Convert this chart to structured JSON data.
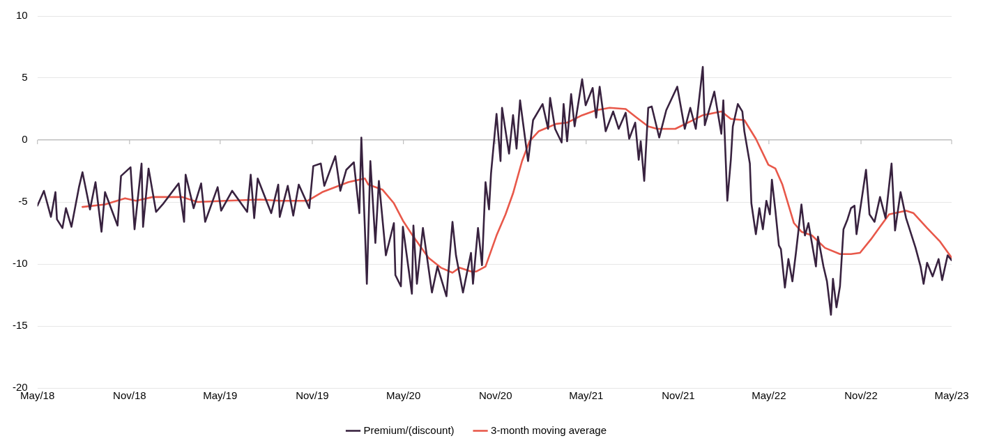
{
  "chart_data": {
    "type": "line",
    "xlim": [
      "2018-05-01",
      "2023-05-01"
    ],
    "xticks": [
      {
        "value": "2018-05",
        "label": "May/18"
      },
      {
        "value": "2018-11",
        "label": "Nov/18"
      },
      {
        "value": "2019-05",
        "label": "May/19"
      },
      {
        "value": "2019-11",
        "label": "Nov/19"
      },
      {
        "value": "2020-05",
        "label": "May/20"
      },
      {
        "value": "2020-11",
        "label": "Nov/20"
      },
      {
        "value": "2021-05",
        "label": "May/21"
      },
      {
        "value": "2021-11",
        "label": "Nov/21"
      },
      {
        "value": "2022-05",
        "label": "May/22"
      },
      {
        "value": "2022-11",
        "label": "Nov/22"
      },
      {
        "value": "2023-05",
        "label": "May/23"
      }
    ],
    "ylim": [
      -20,
      10
    ],
    "yticks": [
      -20,
      -15,
      -10,
      -5,
      0,
      5,
      10
    ],
    "grid": "y",
    "legend": "bottom",
    "marker": "none",
    "line_style": "solid",
    "series": [
      {
        "name": "Premium/(discount)",
        "color": "#38223f",
        "x": [
          "2018-05-01",
          "2018-05-14",
          "2018-05-28",
          "2018-06-06",
          "2018-06-09",
          "2018-06-20",
          "2018-06-27",
          "2018-07-08",
          "2018-07-23",
          "2018-07-30",
          "2018-08-14",
          "2018-08-25",
          "2018-09-06",
          "2018-09-13",
          "2018-10-08",
          "2018-10-15",
          "2018-11-03",
          "2018-11-11",
          "2018-11-25",
          "2018-11-28",
          "2018-12-09",
          "2018-12-24",
          "2019-01-08",
          "2019-02-07",
          "2019-02-18",
          "2019-02-21",
          "2019-03-09",
          "2019-03-24",
          "2019-04-01",
          "2019-04-26",
          "2019-05-03",
          "2019-05-25",
          "2019-06-24",
          "2019-07-01",
          "2019-07-08",
          "2019-07-15",
          "2019-08-11",
          "2019-08-25",
          "2019-08-28",
          "2019-09-13",
          "2019-09-24",
          "2019-10-05",
          "2019-10-26",
          "2019-11-03",
          "2019-11-18",
          "2019-11-25",
          "2019-12-17",
          "2019-12-27",
          "2020-01-08",
          "2020-01-23",
          "2020-02-03",
          "2020-02-07",
          "2020-02-14",
          "2020-02-18",
          "2020-02-25",
          "2020-03-06",
          "2020-03-13",
          "2020-03-27",
          "2020-04-12",
          "2020-04-15",
          "2020-04-26",
          "2020-04-30",
          "2020-05-18",
          "2020-05-21",
          "2020-05-28",
          "2020-06-09",
          "2020-06-27",
          "2020-07-08",
          "2020-07-26",
          "2020-08-07",
          "2020-08-14",
          "2020-08-28",
          "2020-09-13",
          "2020-09-17",
          "2020-09-27",
          "2020-10-05",
          "2020-10-12",
          "2020-10-19",
          "2020-10-23",
          "2020-11-03",
          "2020-11-11",
          "2020-11-14",
          "2020-11-28",
          "2020-12-06",
          "2020-12-13",
          "2020-12-20",
          "2021-01-05",
          "2021-01-15",
          "2021-02-03",
          "2021-02-14",
          "2021-02-18",
          "2021-02-28",
          "2021-03-13",
          "2021-03-17",
          "2021-03-24",
          "2021-04-01",
          "2021-04-08",
          "2021-04-23",
          "2021-04-30",
          "2021-05-14",
          "2021-05-21",
          "2021-05-28",
          "2021-06-09",
          "2021-06-24",
          "2021-07-05",
          "2021-07-19",
          "2021-07-26",
          "2021-08-07",
          "2021-08-14",
          "2021-08-18",
          "2021-08-25",
          "2021-09-02",
          "2021-09-09",
          "2021-09-24",
          "2021-10-08",
          "2021-10-30",
          "2021-11-14",
          "2021-11-25",
          "2021-12-06",
          "2021-12-20",
          "2021-12-24",
          "2022-01-12",
          "2022-01-26",
          "2022-01-30",
          "2022-02-07",
          "2022-02-14",
          "2022-02-18",
          "2022-02-28",
          "2022-03-09",
          "2022-03-13",
          "2022-03-24",
          "2022-03-27",
          "2022-04-05",
          "2022-04-12",
          "2022-04-19",
          "2022-04-26",
          "2022-05-03",
          "2022-05-07",
          "2022-05-14",
          "2022-05-21",
          "2022-05-25",
          "2022-06-02",
          "2022-06-09",
          "2022-06-17",
          "2022-06-24",
          "2022-07-05",
          "2022-07-12",
          "2022-07-19",
          "2022-08-03",
          "2022-08-07",
          "2022-08-18",
          "2022-08-25",
          "2022-09-02",
          "2022-09-06",
          "2022-09-13",
          "2022-09-20",
          "2022-09-27",
          "2022-10-05",
          "2022-10-12",
          "2022-10-19",
          "2022-10-23",
          "2022-11-03",
          "2022-11-11",
          "2022-11-18",
          "2022-11-28",
          "2022-12-09",
          "2022-12-20",
          "2023-01-01",
          "2023-01-08",
          "2023-01-19",
          "2023-01-30",
          "2023-02-18",
          "2023-02-28",
          "2023-03-06",
          "2023-03-13",
          "2023-03-24",
          "2023-04-05",
          "2023-04-12",
          "2023-04-23",
          "2023-05-01"
        ],
        "values": [
          -5.3,
          -4.1,
          -6.2,
          -4.2,
          -6.4,
          -7.1,
          -5.5,
          -7.0,
          -3.8,
          -2.6,
          -5.6,
          -3.4,
          -7.4,
          -4.2,
          -6.9,
          -2.9,
          -2.2,
          -7.2,
          -1.9,
          -7.0,
          -2.3,
          -5.8,
          -5.1,
          -3.5,
          -6.6,
          -2.8,
          -5.5,
          -3.5,
          -6.6,
          -3.8,
          -5.7,
          -4.1,
          -5.8,
          -2.8,
          -6.3,
          -3.1,
          -5.9,
          -3.6,
          -6.2,
          -3.7,
          -6.1,
          -3.6,
          -5.5,
          -2.1,
          -1.9,
          -3.7,
          -1.3,
          -4.1,
          -2.4,
          -1.8,
          -5.9,
          0.2,
          -7.1,
          -11.6,
          -1.7,
          -8.3,
          -3.3,
          -9.3,
          -6.7,
          -10.9,
          -11.8,
          -7.0,
          -12.4,
          -6.9,
          -11.6,
          -7.1,
          -12.3,
          -10.2,
          -12.6,
          -6.6,
          -9.3,
          -12.3,
          -9.1,
          -11.6,
          -7.1,
          -10.1,
          -3.4,
          -5.6,
          -2.7,
          2.1,
          -1.7,
          2.6,
          -1.1,
          2.0,
          -0.7,
          3.2,
          -1.7,
          1.6,
          2.9,
          0.9,
          3.4,
          0.9,
          -0.2,
          2.9,
          -0.1,
          3.7,
          1.1,
          4.9,
          2.8,
          4.2,
          1.8,
          4.3,
          0.7,
          2.3,
          0.9,
          2.2,
          0.1,
          1.4,
          -1.6,
          -0.1,
          -3.3,
          2.6,
          2.7,
          0.2,
          2.4,
          4.3,
          0.9,
          2.6,
          0.9,
          5.9,
          1.2,
          3.9,
          0.5,
          3.2,
          -4.9,
          -1.6,
          1.1,
          2.9,
          2.3,
          0.7,
          -1.9,
          -5.1,
          -7.6,
          -5.5,
          -7.2,
          -4.9,
          -6.0,
          -3.2,
          -5.7,
          -8.5,
          -8.8,
          -11.9,
          -9.6,
          -11.4,
          -9.1,
          -5.2,
          -7.7,
          -6.7,
          -10.2,
          -7.8,
          -10.2,
          -11.4,
          -14.1,
          -11.2,
          -13.5,
          -11.8,
          -7.2,
          -6.4,
          -5.5,
          -5.3,
          -7.6,
          -4.6,
          -2.4,
          -6.0,
          -6.6,
          -4.6,
          -6.3,
          -1.9,
          -7.3,
          -4.2,
          -6.3,
          -8.7,
          -10.2,
          -11.6,
          -9.9,
          -11.0,
          -9.6,
          -11.3,
          -9.3,
          -9.7
        ]
      },
      {
        "name": "3-month moving average",
        "color": "#e8584a",
        "x": [
          "2018-07-30",
          "2018-09-13",
          "2018-10-23",
          "2018-11-14",
          "2018-12-17",
          "2019-01-19",
          "2019-02-14",
          "2019-03-17",
          "2019-05-11",
          "2019-07-19",
          "2019-08-28",
          "2019-10-23",
          "2019-11-21",
          "2020-01-12",
          "2020-02-14",
          "2020-02-21",
          "2020-03-20",
          "2020-04-12",
          "2020-04-30",
          "2020-05-21",
          "2020-06-20",
          "2020-07-15",
          "2020-08-07",
          "2020-08-21",
          "2020-09-13",
          "2020-09-24",
          "2020-10-12",
          "2020-11-03",
          "2020-11-21",
          "2020-12-06",
          "2020-12-24",
          "2021-01-08",
          "2021-01-26",
          "2021-03-02",
          "2021-03-24",
          "2021-04-23",
          "2021-05-21",
          "2021-06-17",
          "2021-07-19",
          "2021-08-07",
          "2021-09-02",
          "2021-09-20",
          "2021-10-26",
          "2021-11-25",
          "2021-12-20",
          "2022-01-26",
          "2022-02-14",
          "2022-03-13",
          "2022-04-05",
          "2022-04-30",
          "2022-05-14",
          "2022-05-28",
          "2022-06-20",
          "2022-07-05",
          "2022-07-26",
          "2022-08-21",
          "2022-09-20",
          "2022-10-12",
          "2022-10-30",
          "2022-11-21",
          "2022-12-09",
          "2022-12-27",
          "2023-01-30",
          "2023-02-14",
          "2023-03-13",
          "2023-04-08",
          "2023-05-01"
        ],
        "values": [
          -5.4,
          -5.2,
          -4.7,
          -4.9,
          -4.6,
          -4.6,
          -4.6,
          -5.0,
          -4.9,
          -4.8,
          -4.9,
          -4.9,
          -4.2,
          -3.4,
          -3.1,
          -3.6,
          -4.0,
          -5.1,
          -6.5,
          -7.8,
          -9.5,
          -10.3,
          -10.7,
          -10.3,
          -10.6,
          -10.6,
          -10.2,
          -7.7,
          -6.0,
          -4.3,
          -1.7,
          -0.1,
          0.7,
          1.3,
          1.4,
          2.0,
          2.4,
          2.6,
          2.5,
          1.9,
          1.1,
          0.9,
          0.9,
          1.5,
          2.0,
          2.3,
          1.7,
          1.6,
          0.1,
          -2.0,
          -2.3,
          -3.6,
          -6.7,
          -7.4,
          -7.7,
          -8.7,
          -9.2,
          -9.2,
          -9.1,
          -8.0,
          -7.0,
          -6.0,
          -5.7,
          -5.9,
          -7.1,
          -8.2,
          -9.5
        ]
      }
    ]
  }
}
